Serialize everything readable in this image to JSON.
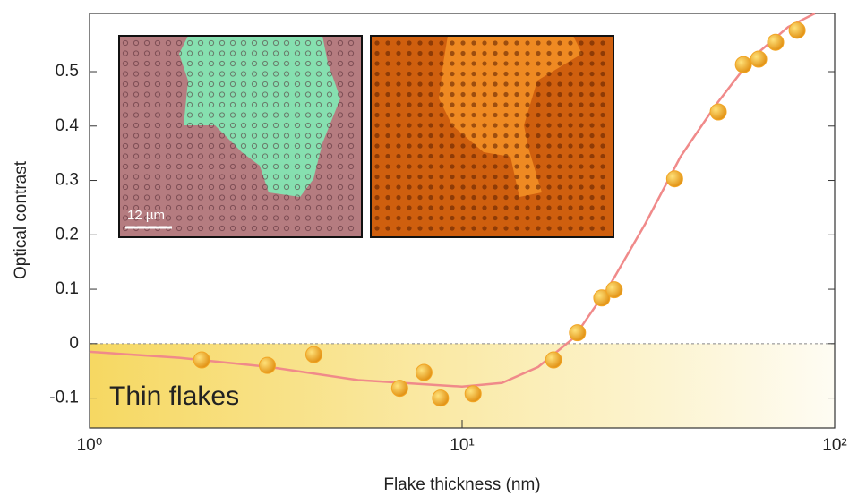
{
  "chart_data": {
    "type": "scatter",
    "x_label": "Flake thickness (nm)",
    "y_label": "Optical contrast",
    "annotation": "Thin flakes",
    "scale_bar_label": "12 µm",
    "x": [
      2,
      3,
      4,
      6.8,
      7.9,
      8.75,
      10.7,
      17.6,
      20.4,
      23.7,
      25.6,
      37.2,
      48.7,
      56.9,
      62.5,
      69.4,
      79.3
    ],
    "values": [
      -0.03,
      -0.04,
      -0.02,
      -0.082,
      -0.053,
      -0.1,
      -0.092,
      -0.03,
      0.02,
      0.084,
      0.099,
      0.303,
      0.426,
      0.513,
      0.523,
      0.554,
      0.576
    ],
    "color": "#f2a524",
    "fit_x": [
      1,
      1.74,
      3.03,
      5.26,
      10,
      12.8,
      16,
      19.9,
      24.8,
      31,
      38.6,
      48.1,
      60,
      75,
      88.5
    ],
    "fit_values": [
      -0.015,
      -0.026,
      -0.043,
      -0.067,
      -0.079,
      -0.072,
      -0.043,
      0.01,
      0.105,
      0.22,
      0.344,
      0.44,
      0.525,
      0.582,
      0.607
    ],
    "fit_color": "#f08a8a",
    "xscale": "log",
    "xlim": [
      1,
      100
    ],
    "xticks": [
      {
        "value": 1,
        "label": "10⁰"
      },
      {
        "value": 10,
        "label": "10¹"
      },
      {
        "value": 100,
        "label": "10²"
      }
    ],
    "ylim": [
      -0.155,
      0.607
    ],
    "yticks": [
      -0.1,
      0,
      0.1,
      0.2,
      0.3,
      0.4,
      0.5
    ]
  }
}
